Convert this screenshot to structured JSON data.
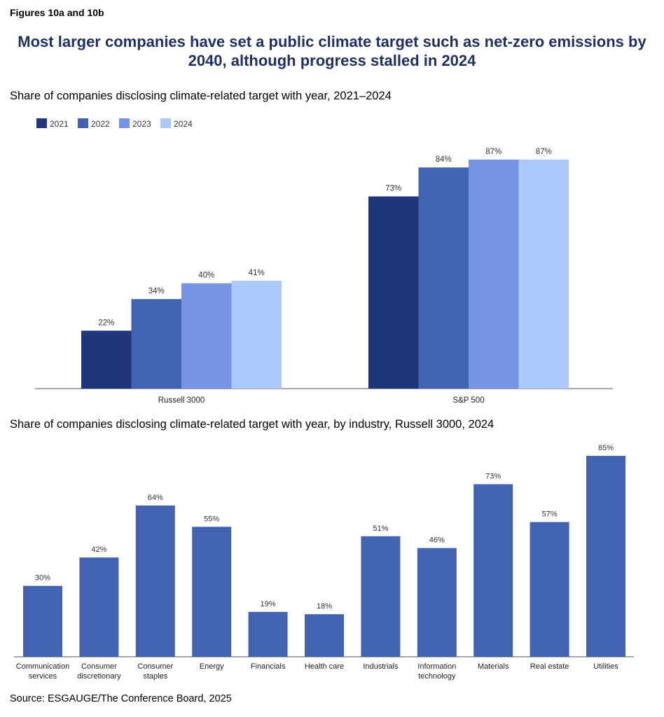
{
  "figure_label": "Figures 10a and 10b",
  "title": "Most larger companies have set a public climate target such as net-zero emissions by 2040, although progress stalled in 2024",
  "source": "Source: ESGAUGE/The Conference Board, 2025",
  "chart_data": [
    {
      "type": "bar",
      "title": "Share of companies disclosing climate-related target with year, 2021–2024",
      "categories": [
        "Russell 3000",
        "S&P 500"
      ],
      "series": [
        {
          "name": "2021",
          "values": [
            22,
            73
          ],
          "color": "#21357a"
        },
        {
          "name": "2022",
          "values": [
            34,
            84
          ],
          "color": "#4263b2"
        },
        {
          "name": "2023",
          "values": [
            40,
            87
          ],
          "color": "#7693e6"
        },
        {
          "name": "2024",
          "values": [
            41,
            87
          ],
          "color": "#adc8fb"
        }
      ],
      "unit": "%",
      "ylim": [
        0,
        100
      ],
      "grid": false,
      "legend": "top-left"
    },
    {
      "type": "bar",
      "title": "Share of companies disclosing climate-related target with year, by industry, Russell 3000, 2024",
      "categories": [
        "Communication services",
        "Consumer discretionary",
        "Consumer staples",
        "Energy",
        "Financials",
        "Health care",
        "Industrials",
        "Information technology",
        "Materials",
        "Real estate",
        "Utilities"
      ],
      "values": [
        30,
        42,
        64,
        55,
        19,
        18,
        51,
        46,
        73,
        57,
        85
      ],
      "color": "#4263b2",
      "unit": "%",
      "ylim": [
        0,
        100
      ],
      "grid": false
    }
  ]
}
